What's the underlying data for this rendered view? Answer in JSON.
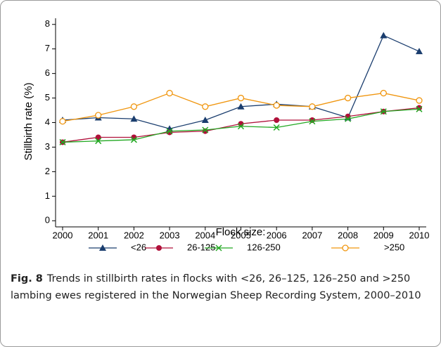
{
  "chart_data": {
    "type": "line",
    "y_label": "Stillbirth rate (%)",
    "x_label": "Flock size:",
    "x": [
      2000,
      2001,
      2002,
      2003,
      2004,
      2005,
      2006,
      2007,
      2008,
      2009,
      2010
    ],
    "xlim": [
      2000,
      2010
    ],
    "xticks": [
      2000,
      2001,
      2002,
      2003,
      2004,
      2005,
      2006,
      2007,
      2008,
      2009,
      2010
    ],
    "ylim": [
      -0.25,
      8.25
    ],
    "yticks": [
      0,
      1,
      2,
      3,
      4,
      5,
      6,
      7,
      8
    ],
    "series": [
      {
        "name": "<26",
        "color": "#1a3d6e",
        "marker": "triangle",
        "values": [
          4.1,
          4.2,
          4.15,
          3.75,
          4.1,
          4.65,
          4.75,
          4.65,
          4.2,
          7.55,
          6.9
        ]
      },
      {
        "name": "26-125",
        "color": "#b0103a",
        "marker": "circle",
        "values": [
          3.2,
          3.4,
          3.4,
          3.6,
          3.65,
          3.95,
          4.1,
          4.1,
          4.25,
          4.45,
          4.6
        ]
      },
      {
        "name": "126-250",
        "color": "#22a822",
        "marker": "x",
        "values": [
          3.2,
          3.25,
          3.3,
          3.65,
          3.7,
          3.85,
          3.8,
          4.05,
          4.15,
          4.45,
          4.55
        ]
      },
      {
        "name": ">250",
        "color": "#f0960f",
        "marker": "open-circle",
        "values": [
          4.05,
          4.3,
          4.65,
          5.2,
          4.65,
          5.0,
          4.7,
          4.65,
          5.0,
          5.2,
          4.9
        ]
      }
    ]
  },
  "caption": {
    "label": "Fig. 8",
    "text": "Trends in stillbirth rates in flocks with <26, 26–125, 126–250 and >250 lambing ewes registered in the Norwegian Sheep Recording System, 2000–2010"
  }
}
